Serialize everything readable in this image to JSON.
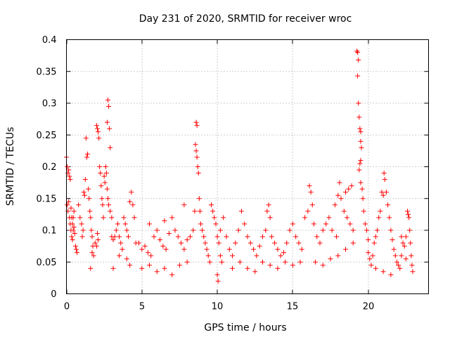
{
  "chart_data": {
    "type": "scatter",
    "title": "Day 231 of 2020, SRMTID for receiver wroc",
    "xlabel": "GPS time / hours",
    "ylabel": "SRMTID / TECUs",
    "xlim": [
      0,
      24
    ],
    "ylim": [
      0,
      0.4
    ],
    "x_ticks": [
      0,
      5,
      10,
      15,
      20
    ],
    "x_tick_labels": [
      "0",
      "5",
      "10",
      "15",
      "20"
    ],
    "y_ticks": [
      0,
      0.05,
      0.1,
      0.15,
      0.2,
      0.25,
      0.3,
      0.35,
      0.4
    ],
    "y_tick_labels": [
      "0",
      "0.05",
      "0.1",
      "0.15",
      "0.2",
      "0.25",
      "0.3",
      "0.35",
      "0.4"
    ],
    "grid": true,
    "marker": "plus",
    "color": "#ff0000",
    "series": [
      {
        "name": "SRMTID",
        "points": [
          [
            0.0,
            0.215
          ],
          [
            0.05,
            0.2
          ],
          [
            0.1,
            0.19
          ],
          [
            0.15,
            0.195
          ],
          [
            0.2,
            0.185
          ],
          [
            0.25,
            0.18
          ],
          [
            0.05,
            0.14
          ],
          [
            0.1,
            0.13
          ],
          [
            0.15,
            0.145
          ],
          [
            0.2,
            0.12
          ],
          [
            0.25,
            0.11
          ],
          [
            0.3,
            0.1
          ],
          [
            0.35,
            0.09
          ],
          [
            0.4,
            0.085
          ],
          [
            0.45,
            0.12
          ],
          [
            0.5,
            0.105
          ],
          [
            0.55,
            0.095
          ],
          [
            0.6,
            0.075
          ],
          [
            0.65,
            0.07
          ],
          [
            0.7,
            0.065
          ],
          [
            0.3,
            0.135
          ],
          [
            0.35,
            0.12
          ],
          [
            0.4,
            0.11
          ],
          [
            0.45,
            0.1
          ],
          [
            0.5,
            0.13
          ],
          [
            0.8,
            0.14
          ],
          [
            0.9,
            0.12
          ],
          [
            1.0,
            0.11
          ],
          [
            1.05,
            0.09
          ],
          [
            1.1,
            0.1
          ],
          [
            1.15,
            0.16
          ],
          [
            1.2,
            0.155
          ],
          [
            1.25,
            0.18
          ],
          [
            1.3,
            0.245
          ],
          [
            1.35,
            0.215
          ],
          [
            1.4,
            0.22
          ],
          [
            1.45,
            0.165
          ],
          [
            1.5,
            0.15
          ],
          [
            1.55,
            0.13
          ],
          [
            1.6,
            0.12
          ],
          [
            1.65,
            0.1
          ],
          [
            1.7,
            0.09
          ],
          [
            1.75,
            0.075
          ],
          [
            1.8,
            0.06
          ],
          [
            1.6,
            0.04
          ],
          [
            1.7,
            0.065
          ],
          [
            1.9,
            0.08
          ],
          [
            2.0,
            0.075
          ],
          [
            2.05,
            0.095
          ],
          [
            2.1,
            0.085
          ],
          [
            2.0,
            0.265
          ],
          [
            2.05,
            0.26
          ],
          [
            2.1,
            0.255
          ],
          [
            2.15,
            0.245
          ],
          [
            2.2,
            0.2
          ],
          [
            2.25,
            0.19
          ],
          [
            2.3,
            0.17
          ],
          [
            2.35,
            0.15
          ],
          [
            2.4,
            0.14
          ],
          [
            2.45,
            0.12
          ],
          [
            2.5,
            0.185
          ],
          [
            2.55,
            0.175
          ],
          [
            2.6,
            0.2
          ],
          [
            2.65,
            0.19
          ],
          [
            2.7,
            0.27
          ],
          [
            2.75,
            0.305
          ],
          [
            2.8,
            0.295
          ],
          [
            2.85,
            0.26
          ],
          [
            2.9,
            0.23
          ],
          [
            2.7,
            0.165
          ],
          [
            2.75,
            0.15
          ],
          [
            2.8,
            0.14
          ],
          [
            2.9,
            0.13
          ],
          [
            3.0,
            0.12
          ],
          [
            3.0,
            0.09
          ],
          [
            3.1,
            0.085
          ],
          [
            3.2,
            0.09
          ],
          [
            3.3,
            0.1
          ],
          [
            3.4,
            0.11
          ],
          [
            3.5,
            0.09
          ],
          [
            3.6,
            0.08
          ],
          [
            3.7,
            0.07
          ],
          [
            3.8,
            0.12
          ],
          [
            3.9,
            0.11
          ],
          [
            4.0,
            0.1
          ],
          [
            4.1,
            0.09
          ],
          [
            4.2,
            0.145
          ],
          [
            4.3,
            0.16
          ],
          [
            4.4,
            0.14
          ],
          [
            4.5,
            0.12
          ],
          [
            4.0,
            0.055
          ],
          [
            4.2,
            0.045
          ],
          [
            3.5,
            0.06
          ],
          [
            3.1,
            0.04
          ],
          [
            4.6,
            0.08
          ],
          [
            4.8,
            0.08
          ],
          [
            5.0,
            0.07
          ],
          [
            5.2,
            0.075
          ],
          [
            5.4,
            0.065
          ],
          [
            5.6,
            0.06
          ],
          [
            5.8,
            0.09
          ],
          [
            6.0,
            0.1
          ],
          [
            6.2,
            0.085
          ],
          [
            6.4,
            0.075
          ],
          [
            6.6,
            0.07
          ],
          [
            6.8,
            0.095
          ],
          [
            7.0,
            0.12
          ],
          [
            7.2,
            0.1
          ],
          [
            7.4,
            0.09
          ],
          [
            7.6,
            0.08
          ],
          [
            7.8,
            0.07
          ],
          [
            8.0,
            0.085
          ],
          [
            8.2,
            0.09
          ],
          [
            8.4,
            0.1
          ],
          [
            8.5,
            0.13
          ],
          [
            5.0,
            0.04
          ],
          [
            5.5,
            0.045
          ],
          [
            6.0,
            0.035
          ],
          [
            6.5,
            0.04
          ],
          [
            7.0,
            0.03
          ],
          [
            7.5,
            0.045
          ],
          [
            8.0,
            0.05
          ],
          [
            5.5,
            0.11
          ],
          [
            6.5,
            0.115
          ],
          [
            7.8,
            0.14
          ],
          [
            8.6,
            0.27
          ],
          [
            8.65,
            0.265
          ],
          [
            8.55,
            0.235
          ],
          [
            8.6,
            0.225
          ],
          [
            8.65,
            0.215
          ],
          [
            8.7,
            0.2
          ],
          [
            8.75,
            0.19
          ],
          [
            8.8,
            0.15
          ],
          [
            8.85,
            0.13
          ],
          [
            8.9,
            0.11
          ],
          [
            9.0,
            0.1
          ],
          [
            9.1,
            0.09
          ],
          [
            9.2,
            0.08
          ],
          [
            9.3,
            0.07
          ],
          [
            9.4,
            0.06
          ],
          [
            9.5,
            0.05
          ],
          [
            9.6,
            0.14
          ],
          [
            9.7,
            0.13
          ],
          [
            9.8,
            0.12
          ],
          [
            9.9,
            0.11
          ],
          [
            10.0,
            0.09
          ],
          [
            10.1,
            0.08
          ],
          [
            10.2,
            0.06
          ],
          [
            10.3,
            0.05
          ],
          [
            10.0,
            0.03
          ],
          [
            10.05,
            0.02
          ],
          [
            10.2,
            0.1
          ],
          [
            10.4,
            0.12
          ],
          [
            10.6,
            0.09
          ],
          [
            10.8,
            0.07
          ],
          [
            11.0,
            0.06
          ],
          [
            11.2,
            0.08
          ],
          [
            11.4,
            0.1
          ],
          [
            11.6,
            0.13
          ],
          [
            11.8,
            0.11
          ],
          [
            12.0,
            0.09
          ],
          [
            12.2,
            0.08
          ],
          [
            12.4,
            0.07
          ],
          [
            12.6,
            0.06
          ],
          [
            12.8,
            0.075
          ],
          [
            13.0,
            0.09
          ],
          [
            13.2,
            0.1
          ],
          [
            13.3,
            0.13
          ],
          [
            13.4,
            0.14
          ],
          [
            13.5,
            0.12
          ],
          [
            13.6,
            0.09
          ],
          [
            13.8,
            0.08
          ],
          [
            14.0,
            0.07
          ],
          [
            14.2,
            0.06
          ],
          [
            14.4,
            0.065
          ],
          [
            14.6,
            0.08
          ],
          [
            14.8,
            0.1
          ],
          [
            15.0,
            0.11
          ],
          [
            15.2,
            0.09
          ],
          [
            15.4,
            0.08
          ],
          [
            15.6,
            0.07
          ],
          [
            12.0,
            0.04
          ],
          [
            12.5,
            0.035
          ],
          [
            13.0,
            0.05
          ],
          [
            13.5,
            0.045
          ],
          [
            14.0,
            0.04
          ],
          [
            14.5,
            0.05
          ],
          [
            15.0,
            0.045
          ],
          [
            15.5,
            0.05
          ],
          [
            11.0,
            0.04
          ],
          [
            11.5,
            0.05
          ],
          [
            15.8,
            0.12
          ],
          [
            16.0,
            0.13
          ],
          [
            16.1,
            0.17
          ],
          [
            16.2,
            0.16
          ],
          [
            16.3,
            0.14
          ],
          [
            16.4,
            0.11
          ],
          [
            16.6,
            0.09
          ],
          [
            16.8,
            0.08
          ],
          [
            17.0,
            0.1
          ],
          [
            17.2,
            0.11
          ],
          [
            17.4,
            0.12
          ],
          [
            17.6,
            0.1
          ],
          [
            17.8,
            0.14
          ],
          [
            18.0,
            0.155
          ],
          [
            18.1,
            0.175
          ],
          [
            18.2,
            0.15
          ],
          [
            18.4,
            0.13
          ],
          [
            18.6,
            0.12
          ],
          [
            18.8,
            0.11
          ],
          [
            19.0,
            0.1
          ],
          [
            16.5,
            0.05
          ],
          [
            17.0,
            0.045
          ],
          [
            17.5,
            0.055
          ],
          [
            18.0,
            0.06
          ],
          [
            18.5,
            0.07
          ],
          [
            19.0,
            0.08
          ],
          [
            18.9,
            0.17
          ],
          [
            18.7,
            0.165
          ],
          [
            18.5,
            0.16
          ],
          [
            17.9,
            0.09
          ],
          [
            19.25,
            0.382
          ],
          [
            19.3,
            0.38
          ],
          [
            19.35,
            0.368
          ],
          [
            19.3,
            0.343
          ],
          [
            19.35,
            0.3
          ],
          [
            19.4,
            0.278
          ],
          [
            19.45,
            0.26
          ],
          [
            19.5,
            0.255
          ],
          [
            19.5,
            0.24
          ],
          [
            19.55,
            0.23
          ],
          [
            19.5,
            0.21
          ],
          [
            19.45,
            0.205
          ],
          [
            19.4,
            0.195
          ],
          [
            19.5,
            0.175
          ],
          [
            19.6,
            0.165
          ],
          [
            19.65,
            0.15
          ],
          [
            19.7,
            0.13
          ],
          [
            19.8,
            0.11
          ],
          [
            19.9,
            0.1
          ],
          [
            20.0,
            0.085
          ],
          [
            20.0,
            0.065
          ],
          [
            20.1,
            0.055
          ],
          [
            20.2,
            0.045
          ],
          [
            20.3,
            0.06
          ],
          [
            20.4,
            0.08
          ],
          [
            20.5,
            0.09
          ],
          [
            20.6,
            0.1
          ],
          [
            20.7,
            0.12
          ],
          [
            20.8,
            0.13
          ],
          [
            20.9,
            0.16
          ],
          [
            21.0,
            0.155
          ],
          [
            21.05,
            0.19
          ],
          [
            21.1,
            0.18
          ],
          [
            21.2,
            0.16
          ],
          [
            21.3,
            0.14
          ],
          [
            21.4,
            0.12
          ],
          [
            21.5,
            0.1
          ],
          [
            21.6,
            0.085
          ],
          [
            21.7,
            0.07
          ],
          [
            21.8,
            0.06
          ],
          [
            21.9,
            0.05
          ],
          [
            22.0,
            0.045
          ],
          [
            22.1,
            0.04
          ],
          [
            22.2,
            0.06
          ],
          [
            22.3,
            0.08
          ],
          [
            22.4,
            0.075
          ],
          [
            22.5,
            0.09
          ],
          [
            22.6,
            0.13
          ],
          [
            22.65,
            0.125
          ],
          [
            22.7,
            0.12
          ],
          [
            22.75,
            0.1
          ],
          [
            22.8,
            0.08
          ],
          [
            22.85,
            0.06
          ],
          [
            22.9,
            0.045
          ],
          [
            22.95,
            0.035
          ],
          [
            21.5,
            0.03
          ],
          [
            21.0,
            0.035
          ],
          [
            20.5,
            0.04
          ],
          [
            22.5,
            0.055
          ],
          [
            22.2,
            0.09
          ]
        ]
      }
    ]
  }
}
